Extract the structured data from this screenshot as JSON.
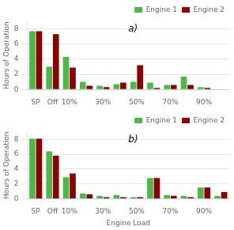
{
  "chart_data": [
    {
      "type": "bar",
      "annotation": "a)",
      "ylabel": "Hours of Operation",
      "categories": [
        "SP",
        "Off",
        "10%",
        null,
        "30%",
        null,
        "50%",
        null,
        "70%",
        null,
        "90%",
        null
      ],
      "series": [
        {
          "name": "Engine 1",
          "color": "#4db848",
          "values": [
            7.7,
            3.0,
            4.3,
            1.0,
            0.5,
            0.7,
            1.0,
            0.9,
            0.6,
            1.7,
            0.3,
            0.0
          ]
        },
        {
          "name": "Engine 2",
          "color": "#8B0000",
          "values": [
            7.7,
            7.3,
            2.9,
            0.5,
            0.3,
            0.9,
            3.2,
            0.2,
            0.6,
            0.6,
            0.2,
            0.0
          ]
        }
      ],
      "ylim": [
        0,
        9
      ],
      "yticks": [
        0,
        2,
        4,
        6,
        8
      ],
      "grid": true,
      "legend": "upper right"
    },
    {
      "type": "bar",
      "annotation": "b)",
      "ylabel": "Hours of Operation",
      "xlabel": "Engine Load",
      "categories": [
        "SP",
        "Off",
        "10%",
        null,
        "30%",
        null,
        "50%",
        null,
        "70%",
        null,
        "90%",
        null
      ],
      "series": [
        {
          "name": "Engine 1",
          "color": "#4db848",
          "values": [
            8.1,
            6.4,
            2.9,
            0.7,
            0.4,
            0.5,
            0.2,
            2.8,
            0.5,
            0.4,
            1.5,
            0.4
          ]
        },
        {
          "name": "Engine 2",
          "color": "#8B0000",
          "values": [
            8.1,
            5.8,
            3.4,
            0.6,
            0.2,
            0.2,
            0.2,
            2.8,
            0.4,
            0.2,
            1.5,
            0.9
          ]
        }
      ],
      "ylim": [
        0,
        9
      ],
      "yticks": [
        0,
        2,
        4,
        6,
        8
      ],
      "grid": true,
      "legend": "upper right"
    }
  ]
}
